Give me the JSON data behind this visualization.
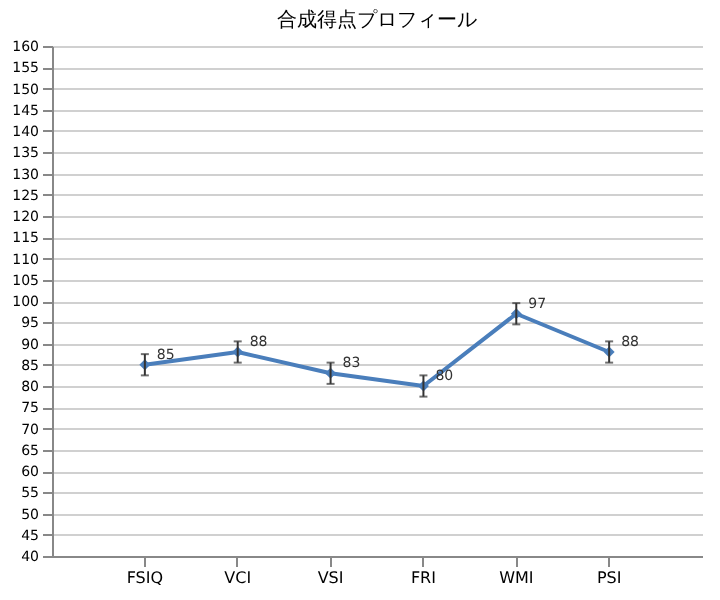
{
  "chart_data": {
    "type": "line",
    "title": "合成得点プロフィール",
    "categories": [
      "FSIQ",
      "VCI",
      "VSI",
      "FRI",
      "WMI",
      "PSI"
    ],
    "series": [
      {
        "color": "#4a7ebb",
        "values": [
          85,
          88,
          83,
          80,
          97,
          88
        ],
        "errors": [
          2.5,
          2.5,
          2.5,
          2.5,
          2.5,
          2.5
        ]
      }
    ],
    "ylim": [
      40,
      160
    ],
    "yticks": [
      40,
      45,
      50,
      55,
      60,
      65,
      70,
      75,
      80,
      85,
      90,
      95,
      100,
      105,
      110,
      115,
      120,
      125,
      130,
      135,
      140,
      145,
      150,
      155,
      160
    ],
    "grid": "y",
    "marker": "diamond",
    "line_style": "solid",
    "data_labels": true
  }
}
